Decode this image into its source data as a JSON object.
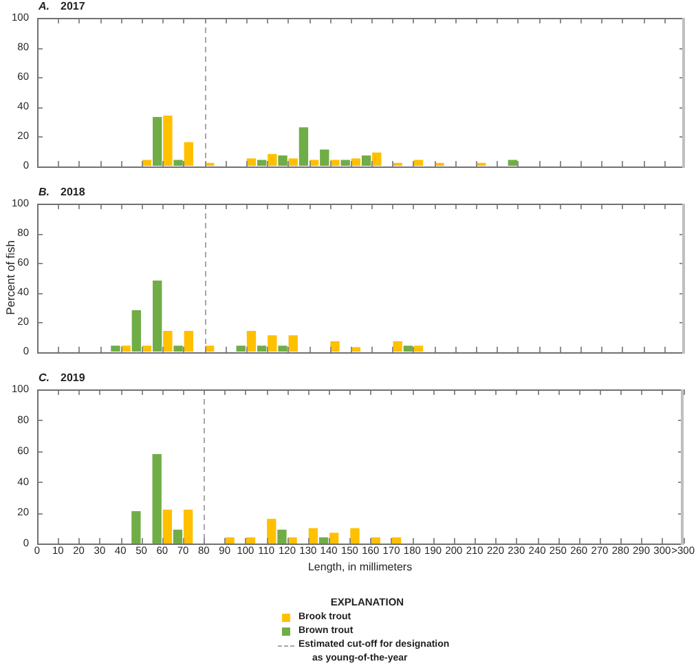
{
  "chart_data": [
    {
      "type": "histogram",
      "title": "A. 2017",
      "bins": [
        0,
        10,
        20,
        30,
        40,
        50,
        60,
        70,
        80,
        90,
        100,
        110,
        120,
        130,
        140,
        150,
        160,
        170,
        180,
        190,
        200,
        210,
        220,
        230,
        240,
        250,
        260,
        270,
        280,
        290,
        300,
        310
      ],
      "series": [
        {
          "color": "#ffc000",
          "values": [
            null,
            null,
            null,
            null,
            null,
            4,
            34,
            16,
            2,
            null,
            5,
            8,
            5,
            4,
            4,
            5,
            9,
            2,
            4,
            2,
            null,
            2,
            null,
            null,
            null,
            null,
            null,
            null,
            null,
            null,
            null
          ]
        },
        {
          "color": "#70ad47",
          "values": [
            null,
            null,
            null,
            null,
            null,
            33,
            4,
            null,
            null,
            null,
            4,
            7,
            26,
            11,
            4,
            7,
            null,
            null,
            null,
            null,
            null,
            null,
            4,
            null,
            null,
            null,
            null,
            null,
            null,
            null,
            null
          ]
        }
      ],
      "xlim": [
        0,
        310
      ],
      "xticks": [
        0,
        10,
        20,
        30,
        40,
        50,
        60,
        70,
        80,
        90,
        100,
        110,
        120,
        130,
        140,
        150,
        160,
        170,
        180,
        190,
        200,
        210,
        220,
        230,
        240,
        250,
        260,
        270,
        280,
        290,
        300
      ],
      "ylim": [
        0,
        100
      ],
      "yticks": [
        0,
        20,
        40,
        60,
        80,
        100
      ],
      "tick_labels": "y",
      "ref_lines": [
        {
          "axis": "x",
          "value": 80,
          "color": "#a6a6a6",
          "line_style": "dashed"
        }
      ]
    },
    {
      "type": "histogram",
      "title": "B. 2018",
      "ylabel": "Percent of fish",
      "bins": [
        0,
        10,
        20,
        30,
        40,
        50,
        60,
        70,
        80,
        90,
        100,
        110,
        120,
        130,
        140,
        150,
        160,
        170,
        180,
        190,
        200,
        210,
        220,
        230,
        240,
        250,
        260,
        270,
        280,
        290,
        300,
        310
      ],
      "series": [
        {
          "color": "#ffc000",
          "values": [
            null,
            null,
            null,
            null,
            4,
            4,
            14,
            14,
            4,
            null,
            14,
            11,
            11,
            null,
            7,
            3,
            null,
            7,
            4,
            null,
            null,
            null,
            null,
            null,
            null,
            null,
            null,
            null,
            null,
            null,
            null
          ]
        },
        {
          "color": "#70ad47",
          "values": [
            null,
            null,
            null,
            4,
            28,
            48,
            4,
            null,
            null,
            4,
            4,
            4,
            null,
            null,
            null,
            null,
            null,
            4,
            null,
            null,
            null,
            null,
            null,
            null,
            null,
            null,
            null,
            null,
            null,
            null,
            null
          ]
        }
      ],
      "xlim": [
        0,
        310
      ],
      "xticks": [
        0,
        10,
        20,
        30,
        40,
        50,
        60,
        70,
        80,
        90,
        100,
        110,
        120,
        130,
        140,
        150,
        160,
        170,
        180,
        190,
        200,
        210,
        220,
        230,
        240,
        250,
        260,
        270,
        280,
        290,
        300
      ],
      "ylim": [
        0,
        100
      ],
      "yticks": [
        0,
        20,
        40,
        60,
        80,
        100
      ],
      "tick_labels": "y",
      "ref_lines": [
        {
          "axis": "x",
          "value": 80,
          "color": "#a6a6a6",
          "line_style": "dashed"
        }
      ]
    },
    {
      "type": "histogram",
      "title": "C. 2019",
      "xlabel": "Length, in millimeters",
      "legend": "bottom",
      "legend_title": "EXPLANATION",
      "bins": [
        0,
        10,
        20,
        30,
        40,
        50,
        60,
        70,
        80,
        90,
        100,
        110,
        120,
        130,
        140,
        150,
        160,
        170,
        180,
        190,
        200,
        210,
        220,
        230,
        240,
        250,
        260,
        270,
        280,
        290,
        300,
        310
      ],
      "series": [
        {
          "name": "Brook trout",
          "color": "#ffc000",
          "values": [
            null,
            null,
            null,
            null,
            null,
            null,
            22,
            22,
            null,
            4,
            4,
            16,
            4,
            10,
            7,
            10,
            4,
            4,
            null,
            null,
            null,
            null,
            null,
            null,
            null,
            null,
            null,
            null,
            null,
            null,
            null
          ]
        },
        {
          "name": "Brown trout",
          "color": "#70ad47",
          "values": [
            null,
            null,
            null,
            null,
            21,
            58,
            9,
            null,
            null,
            null,
            null,
            9,
            null,
            4,
            null,
            null,
            null,
            null,
            null,
            null,
            null,
            null,
            null,
            null,
            null,
            null,
            null,
            null,
            null,
            null,
            null
          ]
        }
      ],
      "xlim": [
        0,
        310
      ],
      "xticks": [
        0,
        10,
        20,
        30,
        40,
        50,
        60,
        70,
        80,
        90,
        100,
        110,
        120,
        130,
        140,
        150,
        160,
        170,
        180,
        190,
        200,
        210,
        220,
        230,
        240,
        250,
        260,
        270,
        280,
        290,
        300,
        {
          "value": 310,
          "label": ">300"
        }
      ],
      "ylim": [
        0,
        100
      ],
      "yticks": [
        0,
        20,
        40,
        60,
        80,
        100
      ],
      "ref_lines": [
        {
          "axis": "x",
          "value": 80,
          "label": "Estimated cut-off for designation as young-of-the-year",
          "color": "#a6a6a6",
          "line_style": "dashed"
        }
      ]
    }
  ]
}
